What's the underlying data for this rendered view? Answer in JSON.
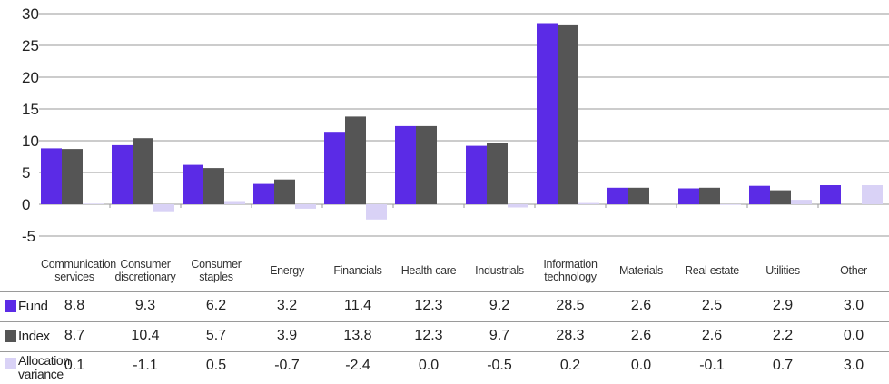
{
  "chart_data": {
    "type": "bar",
    "categories": [
      "Communication services",
      "Consumer discretionary",
      "Consumer staples",
      "Energy",
      "Financials",
      "Health care",
      "Industrials",
      "Information technology",
      "Materials",
      "Real estate",
      "Utilities",
      "Other"
    ],
    "category_lines": [
      [
        "Communication",
        "services"
      ],
      [
        "Consumer",
        "discretionary"
      ],
      [
        "Consumer",
        "staples"
      ],
      [
        "Energy"
      ],
      [
        "Financials"
      ],
      [
        "Health care"
      ],
      [
        "Industrials"
      ],
      [
        "Information",
        "technology"
      ],
      [
        "Materials"
      ],
      [
        "Real estate"
      ],
      [
        "Utilities"
      ],
      [
        "Other"
      ]
    ],
    "series": [
      {
        "name": "Fund",
        "color": "#5b2be6",
        "values": [
          8.8,
          9.3,
          6.2,
          3.2,
          11.4,
          12.3,
          9.2,
          28.5,
          2.6,
          2.5,
          2.9,
          3.0
        ]
      },
      {
        "name": "Index",
        "color": "#555555",
        "values": [
          8.7,
          10.4,
          5.7,
          3.9,
          13.8,
          12.3,
          9.7,
          28.3,
          2.6,
          2.6,
          2.2,
          0.0
        ]
      },
      {
        "name": "Allocation variance",
        "color": "#d9d2f6",
        "values": [
          0.1,
          -1.1,
          0.5,
          -0.7,
          -2.4,
          0.0,
          -0.5,
          0.2,
          0.0,
          -0.1,
          0.7,
          3.0
        ]
      }
    ],
    "table_rows": [
      {
        "label": "Fund",
        "values": [
          "8.8",
          "9.3",
          "6.2",
          "3.2",
          "11.4",
          "12.3",
          "9.2",
          "28.5",
          "2.6",
          "2.5",
          "2.9",
          "3.0"
        ]
      },
      {
        "label": "Index",
        "values": [
          "8.7",
          "10.4",
          "5.7",
          "3.9",
          "13.8",
          "12.3",
          "9.7",
          "28.3",
          "2.6",
          "2.6",
          "2.2",
          "0.0"
        ]
      },
      {
        "label": "Allocation variance",
        "label_lines": [
          "Allocation",
          "variance"
        ],
        "values": [
          "0.1",
          "-1.1",
          "0.5",
          "-0.7",
          "-2.4",
          "0.0",
          "-0.5",
          "0.2",
          "0.0",
          "-0.1",
          "0.7",
          "3.0"
        ]
      }
    ],
    "y_ticks": [
      "-5",
      "0",
      "5",
      "10",
      "15",
      "20",
      "25",
      "30"
    ],
    "ylim": [
      -5,
      30
    ],
    "grid": true,
    "legend": "table-rows"
  }
}
